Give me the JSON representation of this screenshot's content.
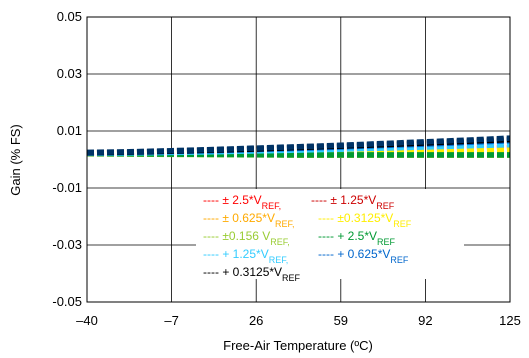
{
  "chart_data": {
    "type": "line",
    "xlabel": "Free-Air Temperature (ºC)",
    "ylabel": "Gain  (% FS)",
    "xlim": [
      -40,
      125
    ],
    "ylim": [
      -0.05,
      0.05
    ],
    "x_ticks": [
      -40,
      -7,
      26,
      59,
      92,
      125
    ],
    "x_tick_labels": [
      "–40",
      "–7",
      "26",
      "59",
      "92",
      "125"
    ],
    "y_ticks": [
      -0.05,
      -0.03,
      -0.01,
      0.01,
      0.03,
      0.05
    ],
    "y_tick_labels": [
      "-0.05",
      "-0.03",
      "-0.01",
      "0.01",
      "0.03",
      "0.05"
    ],
    "grid": true,
    "legend_position": "bottom-center",
    "x": [
      -40,
      -23.5,
      -7,
      9.5,
      26,
      42.5,
      59,
      75.5,
      92,
      108.5,
      125
    ],
    "series": [
      {
        "name": "± 2.5*V<sub>REF,</sub>",
        "color": "#ff0000",
        "values": [
          0.0021,
          0.0022,
          0.0023,
          0.0024,
          0.0026,
          0.0028,
          0.003,
          0.0033,
          0.0036,
          0.0039,
          0.0042
        ]
      },
      {
        "name": "± 1.25*V<sub>REF</sub>",
        "color": "#cc0000",
        "values": [
          0.0021,
          0.0021,
          0.0022,
          0.0023,
          0.0024,
          0.0026,
          0.0028,
          0.0031,
          0.0034,
          0.0037,
          0.004
        ]
      },
      {
        "name": "± 0.625*V<sub>REF,</sub>",
        "color": "#ffaa00",
        "values": [
          0.002,
          0.002,
          0.0021,
          0.0022,
          0.0023,
          0.0024,
          0.0026,
          0.0028,
          0.003,
          0.0033,
          0.0036
        ]
      },
      {
        "name": "±0.3125*V<sub>REF</sub>",
        "color": "#ffee00",
        "values": [
          0.002,
          0.002,
          0.002,
          0.0021,
          0.0022,
          0.0023,
          0.0024,
          0.0026,
          0.0028,
          0.003,
          0.0032
        ]
      },
      {
        "name": "±0.156 V<sub>REF,</sub>",
        "color": "#99cc33",
        "values": [
          0.002,
          0.0019,
          0.0018,
          0.0017,
          0.0016,
          0.0015,
          0.0015,
          0.0015,
          0.0015,
          0.0015,
          0.0015
        ]
      },
      {
        "name": "+ 2.5*V<sub>REF</sub>",
        "color": "#009933",
        "values": [
          0.0021,
          0.002,
          0.0019,
          0.0018,
          0.0017,
          0.0016,
          0.0016,
          0.0016,
          0.0016,
          0.0016,
          0.0016
        ]
      },
      {
        "name": "+ 1.25*V<sub>REF,</sub>",
        "color": "#33ccff",
        "values": [
          0.0022,
          0.0023,
          0.0025,
          0.0027,
          0.003,
          0.0033,
          0.0036,
          0.004,
          0.0044,
          0.0048,
          0.0052
        ]
      },
      {
        "name": "+ 0.625*V<sub>REF</sub>",
        "color": "#0066cc",
        "values": [
          0.0023,
          0.0025,
          0.0028,
          0.0031,
          0.0035,
          0.0039,
          0.0044,
          0.0049,
          0.0054,
          0.006,
          0.0066
        ]
      },
      {
        "name": "+ 0.3125*V<sub>REF</sub>",
        "color": "#000000",
        "values": [
          0.0024,
          0.0026,
          0.0029,
          0.0033,
          0.0037,
          0.0042,
          0.0047,
          0.0052,
          0.0058,
          0.0064,
          0.007
        ]
      },
      {
        "name": "",
        "color": "#003366",
        "values": [
          0.0025,
          0.0027,
          0.0031,
          0.0035,
          0.004,
          0.0045,
          0.005,
          0.0056,
          0.0062,
          0.0068,
          0.0075
        ]
      }
    ]
  }
}
